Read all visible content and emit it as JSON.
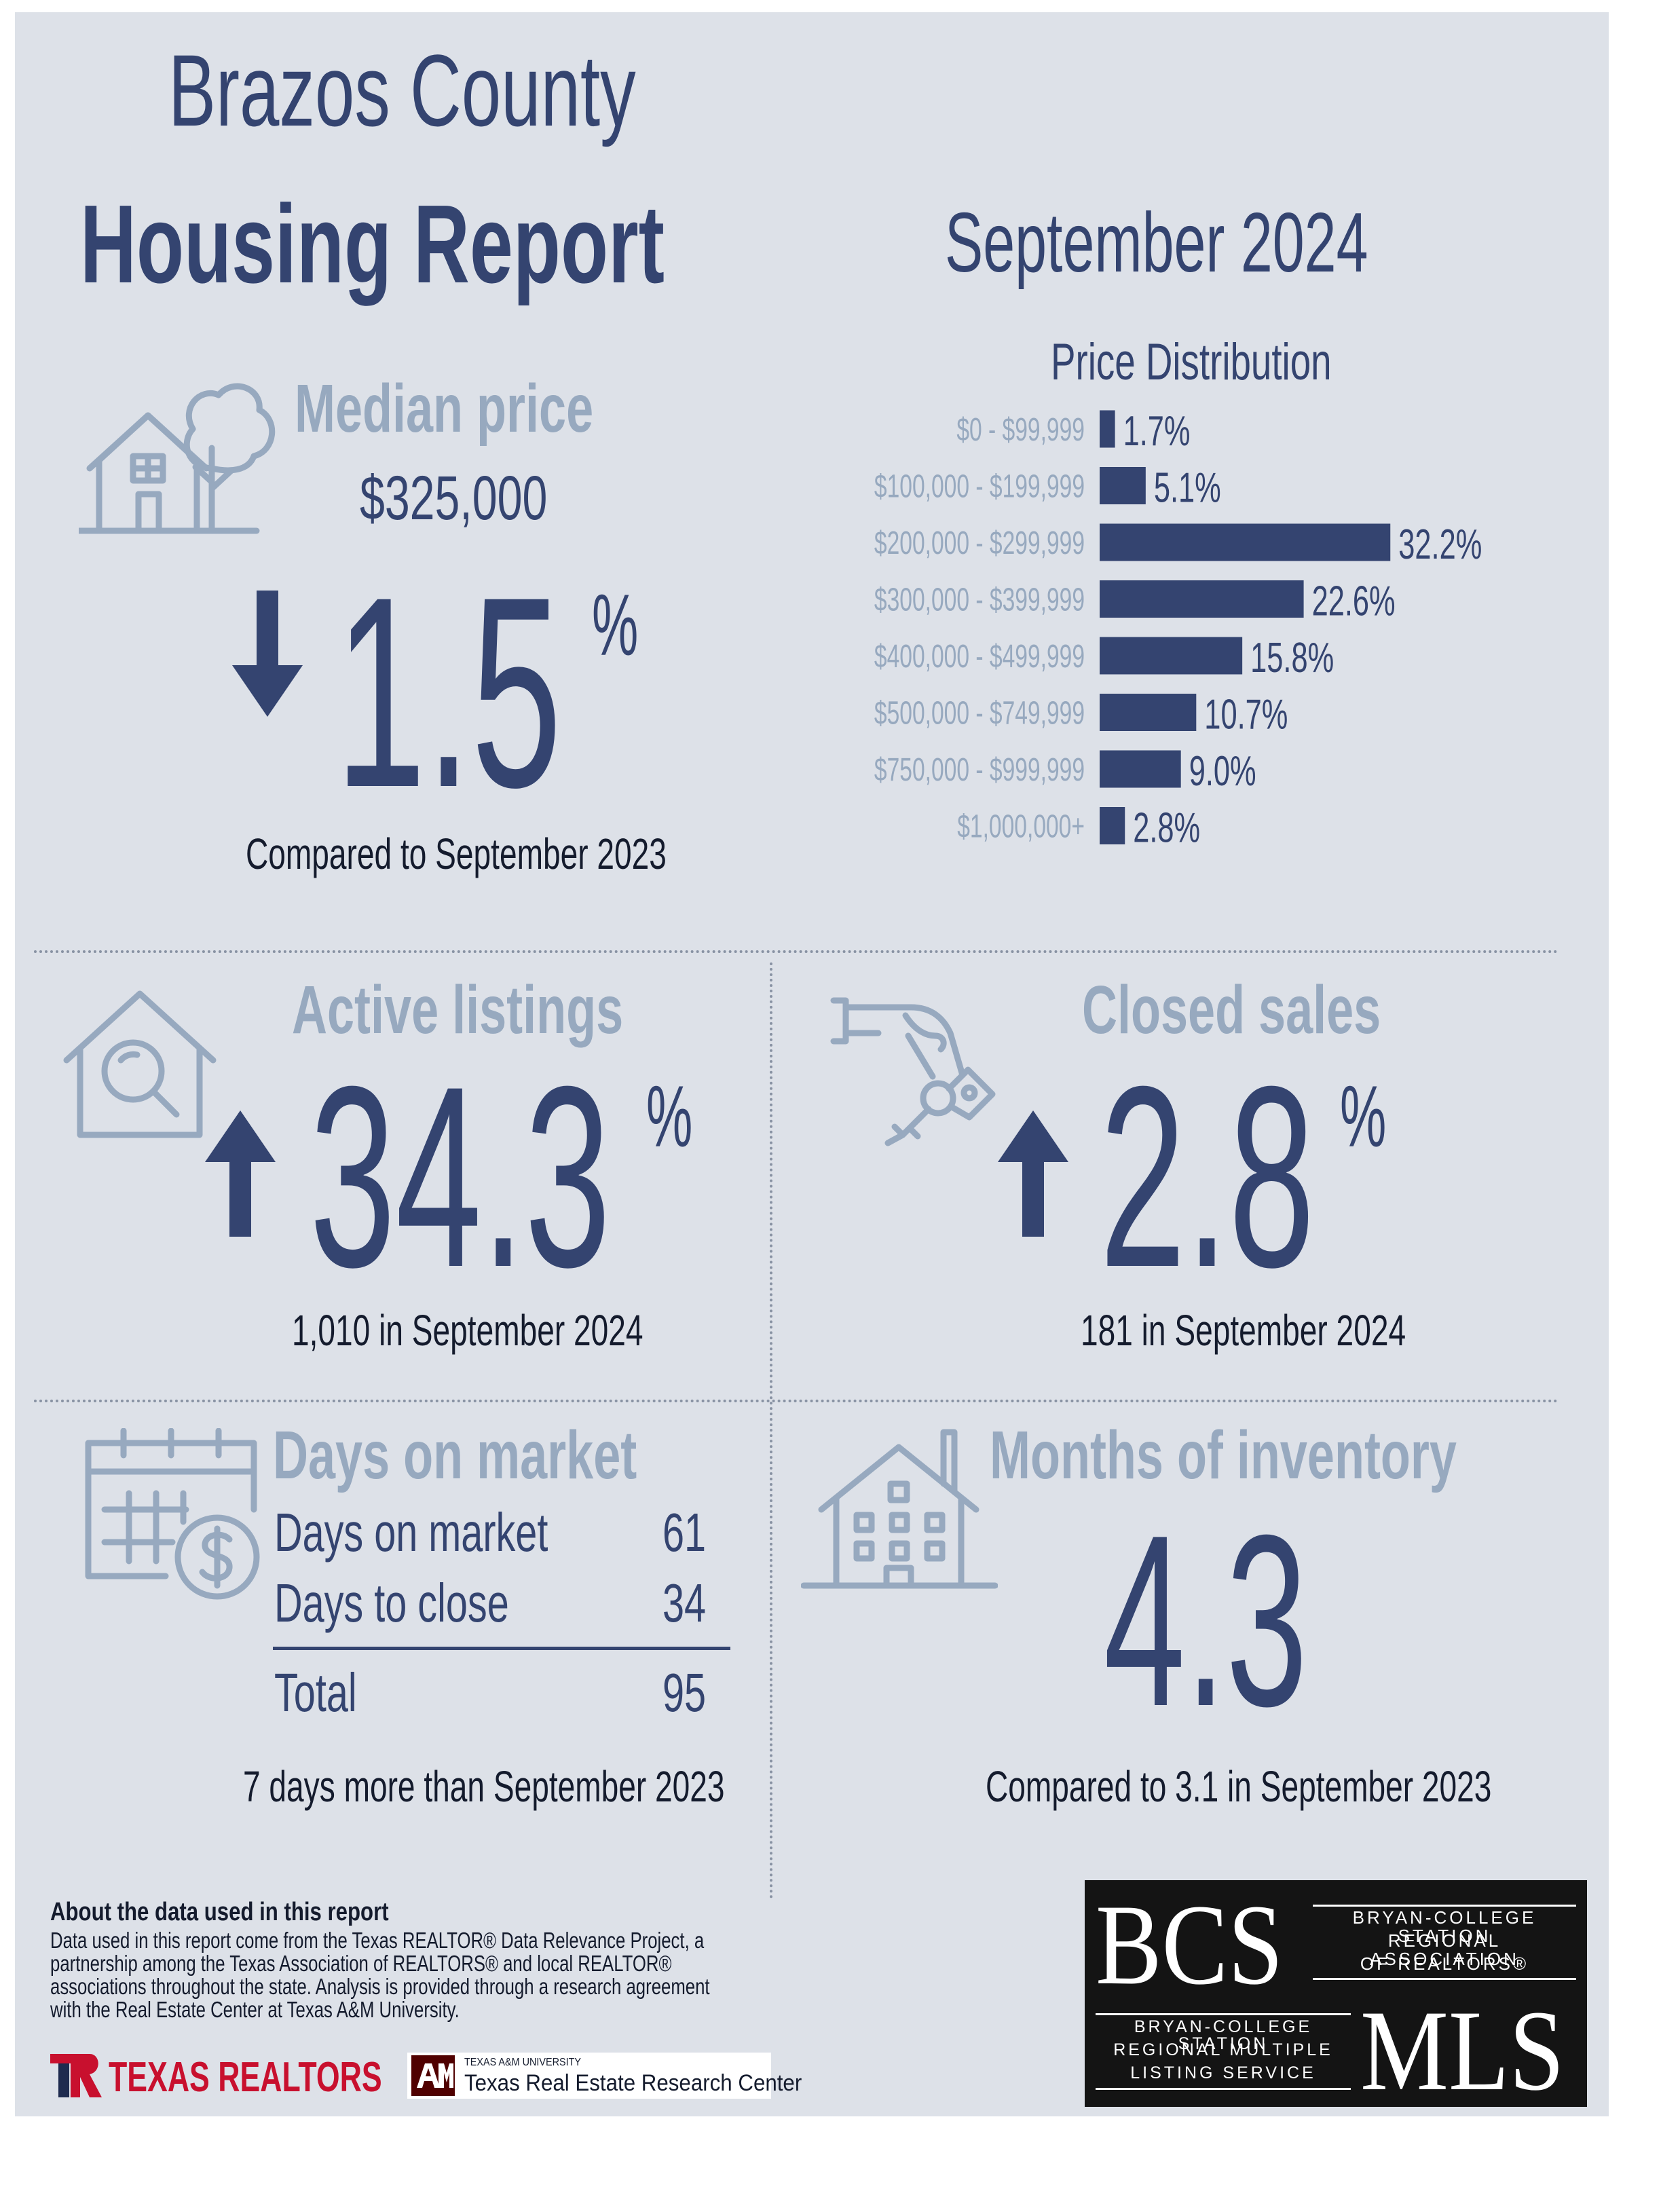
{
  "header": {
    "title_line1": "Brazos County",
    "title_line2": "Housing Report",
    "period": "September 2024"
  },
  "median_price": {
    "label": "Median price",
    "value": "$325,000",
    "change": "1.5",
    "unit": "%",
    "direction": "down",
    "comparison": "Compared to September 2023",
    "icon": "house-with-tree-icon"
  },
  "chart_data": {
    "type": "bar",
    "orientation": "horizontal",
    "title": "Price Distribution",
    "categories": [
      "$0 - $99,999",
      "$100,000 - $199,999",
      "$200,000 - $299,999",
      "$300,000 - $399,999",
      "$400,000 - $499,999",
      "$500,000 - $749,999",
      "$750,000 - $999,999",
      "$1,000,000+"
    ],
    "values": [
      1.7,
      5.1,
      32.2,
      22.6,
      15.8,
      10.7,
      9.0,
      2.8
    ],
    "value_labels": [
      "1.7%",
      "5.1%",
      "32.2%",
      "22.6%",
      "15.8%",
      "10.7%",
      "9.0%",
      "2.8%"
    ],
    "bar_color": "#344470",
    "grid": false
  },
  "active_listings": {
    "label": "Active listings",
    "change": "34.3",
    "unit": "%",
    "direction": "up",
    "detail": "1,010 in September 2024",
    "icon": "house-search-icon"
  },
  "closed_sales": {
    "label": "Closed sales",
    "change": "2.8",
    "unit": "%",
    "direction": "up",
    "detail": "181 in September 2024",
    "icon": "hand-keys-icon"
  },
  "days_on_market": {
    "label": "Days on market",
    "rows": [
      {
        "label": "Days on market",
        "value": "61"
      },
      {
        "label": "Days to close",
        "value": "34"
      }
    ],
    "total_label": "Total",
    "total_value": "95",
    "comparison": "7 days more than September 2023",
    "icon": "calendar-dollar-icon"
  },
  "months_inventory": {
    "label": "Months of inventory",
    "value": "4.3",
    "comparison": "Compared to 3.1 in September 2023",
    "icon": "apartment-building-icon"
  },
  "about": {
    "heading": "About the data used in this report",
    "lines": [
      "Data used in this report come from the Texas REALTOR® Data Relevance Project, a",
      "partnership among the Texas Association of REALTORS® and local REALTOR®",
      "associations throughout the state. Analysis is provided through a research agreement",
      "with the Real Estate Center at Texas A&M University."
    ]
  },
  "logos": {
    "texas_realtors": "TEXAS REALTORS",
    "tamu_small": "TEXAS A&M UNIVERSITY",
    "tamu_center": "Texas Real Estate Research Center",
    "bcs_big": "BCS",
    "bcs_lines": [
      "BRYAN-COLLEGE STATION",
      "REGIONAL ASSOCIATION",
      "OF REALTORS®"
    ],
    "mls_lines": [
      "BRYAN-COLLEGE STATION",
      "REGIONAL MULTIPLE",
      "LISTING SERVICE"
    ],
    "mls_big": "MLS"
  },
  "colors": {
    "navy": "#344470",
    "pale": "#97a9bf",
    "background": "#dde1e8"
  }
}
